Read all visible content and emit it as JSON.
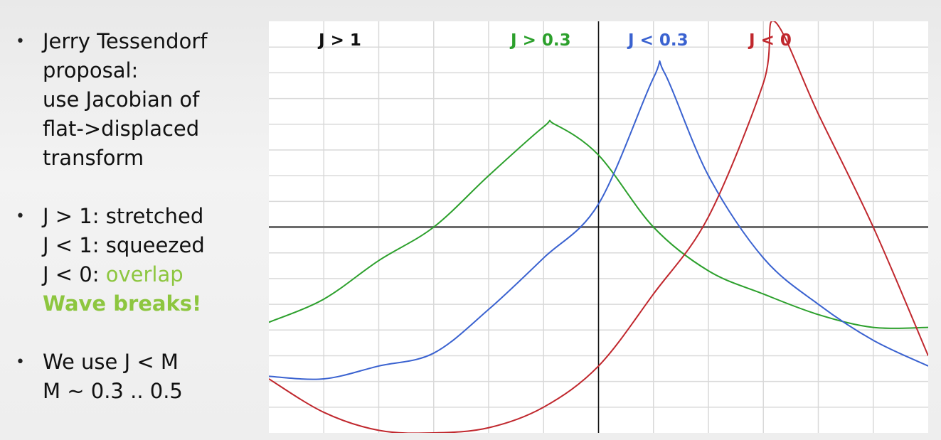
{
  "bullets": [
    {
      "lines": [
        "Jerry Tessendorf",
        "proposal:",
        "use Jacobian of",
        "flat->displaced",
        "transform"
      ]
    },
    {
      "lines": [
        "J > 1: stretched",
        "J < 1: squeezed"
      ],
      "line3_prefix": "J < 0: ",
      "line3_highlight": "overlap",
      "line4": "Wave breaks!"
    },
    {
      "lines": [
        "We use J < M",
        "M ~ 0.3 .. 0.5"
      ]
    }
  ],
  "colors": {
    "green": "#2ca02c",
    "blue": "#3a62d0",
    "red": "#c0272d",
    "axis": "#6b6b6b",
    "grid": "#d9d9d9",
    "highlight": "#8dc63f"
  },
  "chart_data": {
    "type": "line",
    "xlim": [
      -6,
      6
    ],
    "ylim": [
      -4,
      4
    ],
    "grid": true,
    "series": [
      {
        "name": "J > 1",
        "label_color": "#111111",
        "values": []
      },
      {
        "name": "J > 0.3",
        "color": "#2ca02c",
        "x": [
          -6,
          -5,
          -4,
          -3,
          -2,
          -1,
          -0.8,
          0,
          1,
          2,
          3,
          4,
          5,
          6
        ],
        "values": [
          -1.85,
          -1.4,
          -0.65,
          0.0,
          1.0,
          1.95,
          2.0,
          1.4,
          0.0,
          -0.85,
          -1.3,
          -1.7,
          -1.95,
          -1.95
        ]
      },
      {
        "name": "J < 0.3",
        "color": "#3a62d0",
        "x": [
          -6,
          -5,
          -4,
          -3,
          -2,
          -1,
          0,
          1,
          1.2,
          2,
          3,
          4,
          5,
          6
        ],
        "values": [
          -2.9,
          -2.95,
          -2.7,
          -2.45,
          -1.6,
          -0.6,
          0.45,
          2.9,
          3.0,
          1.0,
          -0.6,
          -1.5,
          -2.2,
          -2.7
        ]
      },
      {
        "name": "J < 0",
        "color": "#c0272d",
        "x": [
          -6,
          -5,
          -4,
          -3,
          -2,
          -1,
          0,
          1,
          2,
          3,
          3.2,
          4,
          5,
          6
        ],
        "values": [
          -2.95,
          -3.6,
          -3.95,
          -4.0,
          -3.9,
          -3.5,
          -2.7,
          -1.3,
          0.2,
          2.8,
          4.0,
          2.2,
          0.0,
          -2.5
        ]
      }
    ]
  }
}
